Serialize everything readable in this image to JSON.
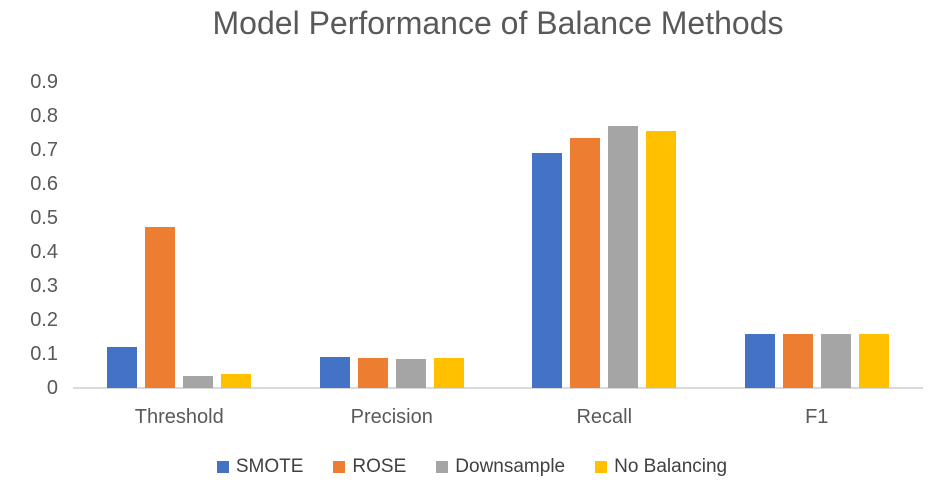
{
  "chart_data": {
    "type": "bar",
    "title": "Model Performance of Balance Methods",
    "categories": [
      "Threshold",
      "Precision",
      "Recall",
      "F1"
    ],
    "series": [
      {
        "name": "SMOTE",
        "color": "#4472C4",
        "values": [
          0.12,
          0.09,
          0.69,
          0.16
        ]
      },
      {
        "name": "ROSE",
        "color": "#ED7D31",
        "values": [
          0.475,
          0.088,
          0.735,
          0.16
        ]
      },
      {
        "name": "Downsample",
        "color": "#A5A5A5",
        "values": [
          0.035,
          0.085,
          0.77,
          0.158
        ]
      },
      {
        "name": "No Balancing",
        "color": "#FFC000",
        "values": [
          0.04,
          0.088,
          0.755,
          0.16
        ]
      }
    ],
    "xlabel": "",
    "ylabel": "",
    "ylim": [
      0,
      0.9
    ],
    "yticks": [
      "0",
      "0.1",
      "0.2",
      "0.3",
      "0.4",
      "0.5",
      "0.6",
      "0.7",
      "0.8",
      "0.9"
    ],
    "grid": false,
    "legend_position": "bottom",
    "colors": {
      "title_text": "#595959",
      "axis_text": "#595959",
      "legend_text": "#404040",
      "axis_line": "#D9D9D9",
      "background": "#FFFFFF"
    }
  }
}
